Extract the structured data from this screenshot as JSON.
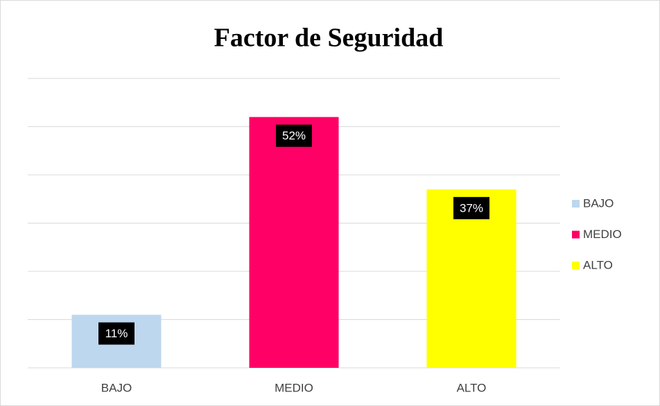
{
  "chart_data": {
    "type": "bar",
    "title": "Factor de Seguridad",
    "categories": [
      "BAJO",
      "MEDIO",
      "ALTO"
    ],
    "values": [
      11,
      52,
      37
    ],
    "value_labels": [
      "11%",
      "52%",
      "37%"
    ],
    "colors": [
      "#bdd7ee",
      "#ff0066",
      "#ffff00"
    ],
    "ylim": [
      0,
      60
    ],
    "yticks": [
      0,
      10,
      20,
      30,
      40,
      50,
      60
    ],
    "grid": true,
    "legend": "right"
  }
}
